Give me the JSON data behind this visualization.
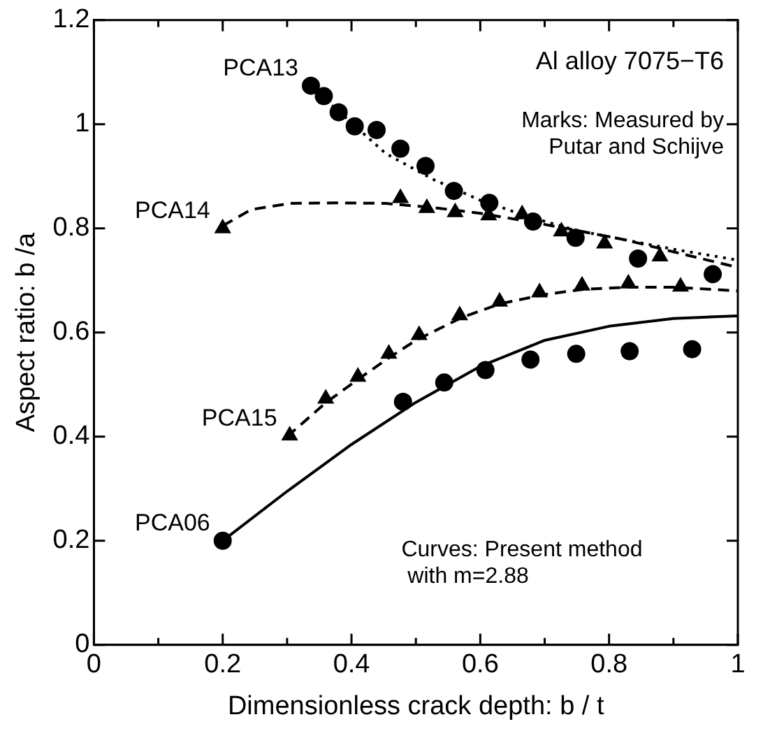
{
  "chart_data": {
    "type": "scatter",
    "xlabel": "Dimensionless crack depth: b / t",
    "ylabel": "Aspect ratio: b /a",
    "xlim": [
      0,
      1
    ],
    "ylim": [
      0,
      1.2
    ],
    "xticks": [
      0,
      {
        "value": 0.1,
        "label": null
      },
      0.2,
      {
        "value": 0.3,
        "label": null
      },
      0.4,
      {
        "value": 0.5,
        "label": null
      },
      0.6,
      {
        "value": 0.7,
        "label": null
      },
      0.8,
      {
        "value": 0.9,
        "label": null
      },
      1
    ],
    "yticks": [
      0,
      0.2,
      0.4,
      0.6,
      0.8,
      1,
      1.2
    ],
    "grid": false,
    "series": [
      {
        "name": "PCA13",
        "marker": "circle",
        "color": "#000000",
        "x": [
          0.337,
          0.357,
          0.38,
          0.405,
          0.439,
          0.476,
          0.515,
          0.559,
          0.614,
          0.682,
          0.748,
          0.845,
          0.961
        ],
        "values": [
          1.074,
          1.054,
          1.023,
          0.996,
          0.989,
          0.953,
          0.92,
          0.872,
          0.849,
          0.813,
          0.782,
          0.742,
          0.712
        ]
      },
      {
        "name": "PCA14",
        "marker": "triangle",
        "color": "#000000",
        "x": [
          0.2,
          0.476,
          0.517,
          0.561,
          0.613,
          0.665,
          0.726,
          0.793,
          0.879
        ],
        "values": [
          0.8,
          0.858,
          0.839,
          0.831,
          0.825,
          0.827,
          0.794,
          0.771,
          0.746
        ]
      },
      {
        "name": "PCA15",
        "marker": "triangle",
        "color": "#000000",
        "x": [
          0.304,
          0.36,
          0.41,
          0.458,
          0.505,
          0.568,
          0.63,
          0.692,
          0.758,
          0.83,
          0.911
        ],
        "values": [
          0.402,
          0.473,
          0.515,
          0.559,
          0.595,
          0.633,
          0.659,
          0.677,
          0.69,
          0.694,
          0.688
        ]
      },
      {
        "name": "PCA06",
        "marker": "circle",
        "color": "#000000",
        "x": [
          0.2,
          0.48,
          0.544,
          0.608,
          0.678,
          0.749,
          0.832,
          0.929
        ],
        "values": [
          0.2,
          0.467,
          0.504,
          0.528,
          0.548,
          0.559,
          0.564,
          0.568
        ]
      },
      {
        "type": "line",
        "line_style": "dotted",
        "color": "#000000",
        "x": [
          0.36,
          0.453,
          0.527,
          0.6,
          0.676,
          0.75,
          0.825,
          0.9,
          1
        ],
        "values": [
          1.047,
          0.944,
          0.894,
          0.854,
          0.822,
          0.796,
          0.778,
          0.76,
          0.739
        ]
      },
      {
        "type": "line",
        "line_style": "dashed",
        "color": "#000000",
        "x": [
          0.2,
          0.244,
          0.304,
          0.378,
          0.453,
          0.527,
          0.6,
          0.676,
          0.75,
          0.825,
          0.9,
          1
        ],
        "values": [
          0.805,
          0.836,
          0.848,
          0.849,
          0.848,
          0.84,
          0.829,
          0.813,
          0.796,
          0.778,
          0.755,
          0.725
        ]
      },
      {
        "type": "line",
        "line_style": "dashed",
        "color": "#000000",
        "x": [
          0.3,
          0.36,
          0.41,
          0.46,
          0.5,
          0.57,
          0.63,
          0.7,
          0.76,
          0.83,
          0.9,
          1
        ],
        "values": [
          0.4,
          0.465,
          0.51,
          0.553,
          0.585,
          0.628,
          0.655,
          0.673,
          0.683,
          0.687,
          0.687,
          0.68
        ]
      },
      {
        "type": "line",
        "line_style": "solid",
        "color": "#000000",
        "x": [
          0.2,
          0.3,
          0.4,
          0.5,
          0.6,
          0.7,
          0.8,
          0.9,
          1
        ],
        "values": [
          0.2,
          0.295,
          0.385,
          0.466,
          0.535,
          0.585,
          0.612,
          0.627,
          0.632
        ]
      }
    ],
    "annotations": [
      "Al alloy 7075−T6",
      "Marks: Measured by\n Putar and Schijve",
      "Curves: Present method\n with m=2.88"
    ]
  }
}
